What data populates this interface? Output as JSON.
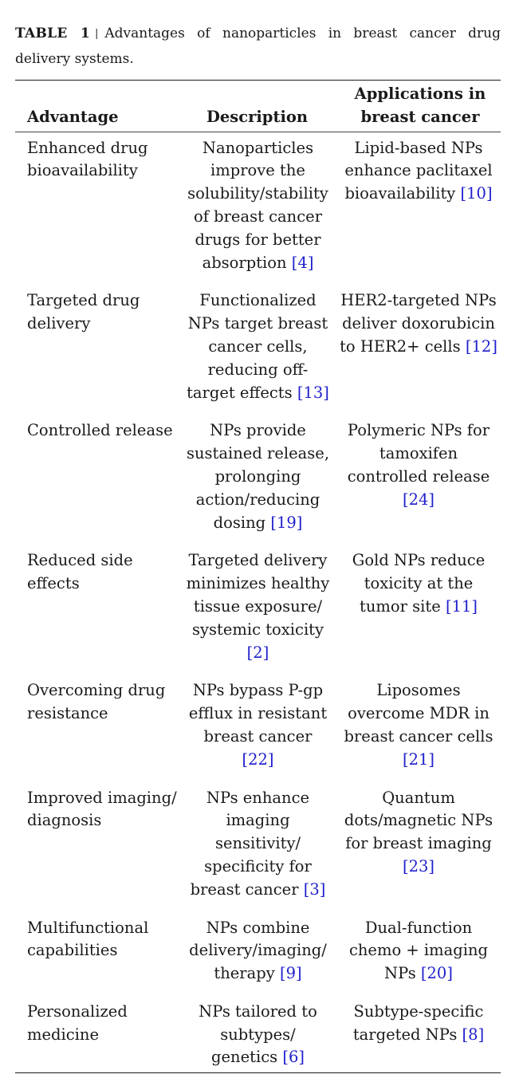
{
  "caption": {
    "label": "TABLE 1",
    "separator": "|",
    "text": "Advantages of nanoparticles in breast cancer drug delivery systems."
  },
  "table": {
    "headers": [
      "Advantage",
      "Description",
      "Applications in breast cancer"
    ],
    "rows": [
      {
        "advantage": "Enhanced drug bioavailability",
        "description": "Nanoparticles improve the solubility/stability of breast cancer drugs for better absorption",
        "description_ref": "4",
        "application": "Lipid-based NPs enhance paclitaxel bioavailability",
        "application_ref": "10"
      },
      {
        "advantage": "Targeted drug delivery",
        "description": "Functionalized NPs target breast cancer cells, reducing off-target effects",
        "description_ref": "13",
        "application": "HER2-targeted NPs deliver doxorubicin to HER2+ cells",
        "application_ref": "12"
      },
      {
        "advantage": "Controlled release",
        "description": "NPs provide sustained release, prolonging action/reducing dosing",
        "description_ref": "19",
        "application": "Polymeric NPs for tamoxifen controlled release",
        "application_ref": "24"
      },
      {
        "advantage": "Reduced side effects",
        "description": "Targeted delivery minimizes healthy tissue exposure/ systemic toxicity",
        "description_ref": "2",
        "application": "Gold NPs reduce toxicity at the tumor site",
        "application_ref": "11"
      },
      {
        "advantage": "Overcoming drug resistance",
        "description": "NPs bypass P-gp efflux in resistant breast cancer",
        "description_ref": "22",
        "application": "Liposomes overcome MDR in breast cancer cells",
        "application_ref": "21"
      },
      {
        "advantage": "Improved imaging/ diagnosis",
        "description": "NPs enhance imaging sensitivity/ specificity for breast cancer",
        "description_ref": "3",
        "application": "Quantum dots/magnetic NPs for breast imaging",
        "application_ref": "23"
      },
      {
        "advantage": "Multifunctional capabilities",
        "description": "NPs combine delivery/imaging/ therapy",
        "description_ref": "9",
        "application": "Dual-function chemo + imaging NPs",
        "application_ref": "20"
      },
      {
        "advantage": "Personalized medicine",
        "description": "NPs tailored to subtypes/ genetics",
        "description_ref": "6",
        "application": "Subtype-specific targeted NPs",
        "application_ref": "8"
      }
    ]
  },
  "colors": {
    "text": "#1a1a1a",
    "reference_link": "#1f1fcc"
  }
}
